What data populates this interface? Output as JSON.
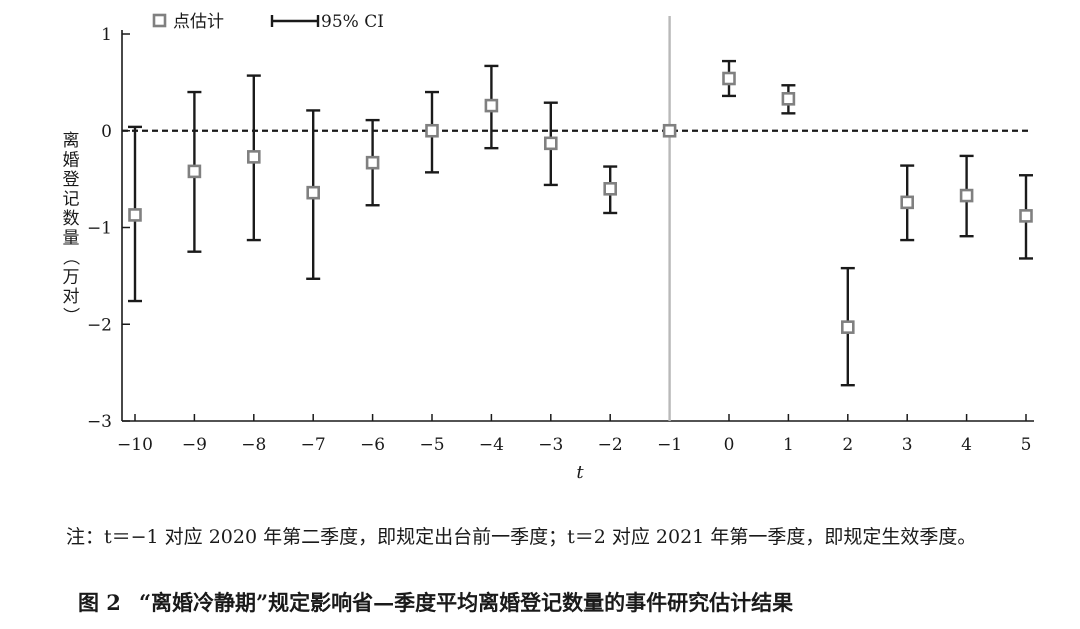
{
  "chart_data": {
    "type": "scatter",
    "xlabel": "t",
    "ylabel": "离婚登记数量（万对）",
    "x": [
      -10,
      -9,
      -8,
      -7,
      -6,
      -5,
      -4,
      -3,
      -2,
      -1,
      0,
      1,
      2,
      3,
      4,
      5
    ],
    "x_tick_labels": [
      "−10",
      "−9",
      "−8",
      "−7",
      "−6",
      "−5",
      "−4",
      "−3",
      "−2",
      "−1",
      "0",
      "1",
      "2",
      "3",
      "4",
      "5"
    ],
    "ylim": [
      -3,
      1
    ],
    "y_ticks": [
      -3,
      -2,
      -1,
      0,
      1
    ],
    "y_tick_labels": [
      "−3",
      "−2",
      "−1",
      "0",
      "1"
    ],
    "series": [
      {
        "name": "点估计",
        "values": [
          -0.87,
          -0.42,
          -0.27,
          -0.64,
          -0.33,
          0.0,
          0.26,
          -0.13,
          -0.6,
          0.0,
          0.54,
          0.33,
          -2.03,
          -0.74,
          -0.67,
          -0.88
        ]
      },
      {
        "name": "95% CI",
        "lower": [
          -1.76,
          -1.25,
          -1.13,
          -1.53,
          -0.77,
          -0.43,
          -0.18,
          -0.56,
          -0.85,
          null,
          0.36,
          0.18,
          -2.63,
          -1.13,
          -1.09,
          -1.32
        ],
        "upper": [
          0.04,
          0.4,
          0.57,
          0.21,
          0.11,
          0.4,
          0.67,
          0.29,
          -0.37,
          null,
          0.72,
          0.47,
          -1.42,
          -0.36,
          -0.26,
          -0.46
        ]
      }
    ],
    "reference_lines": {
      "horizontal_dashed_at_y": 0,
      "vertical_at_x": -1
    },
    "legend_position": "top-left",
    "grid": false
  },
  "note": "注：t＝−1 对应 2020 年第二季度，即规定出台前一季度；t＝2 对应 2021 年第一季度，即规定生效季度。",
  "caption": {
    "figure_number": "图 2",
    "title": "“离婚冷静期”规定影响省—季度平均离婚登记数量的事件研究估计结果"
  }
}
